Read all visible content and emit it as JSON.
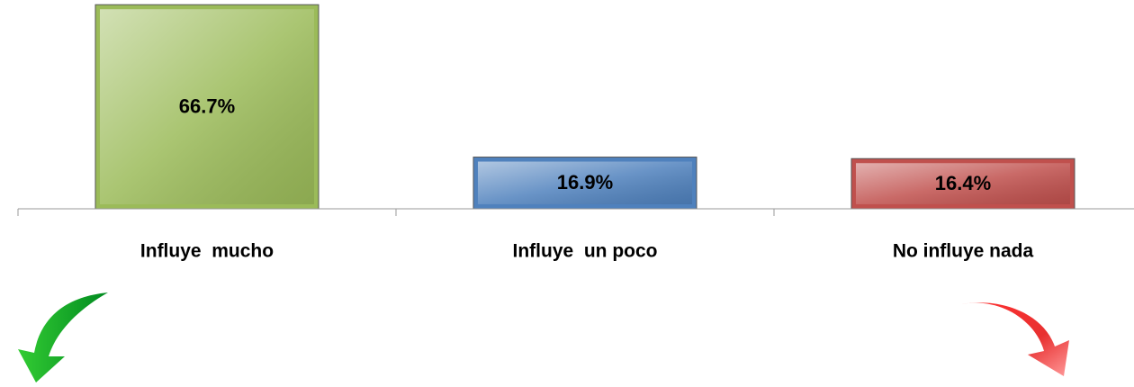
{
  "chart_data": {
    "type": "bar",
    "categories": [
      "Influye  mucho",
      "Influye  un poco",
      "No influye nada"
    ],
    "values": [
      66.7,
      16.9,
      16.4
    ],
    "value_labels": [
      "66.7%",
      "16.9%",
      "16.4%"
    ],
    "colors": [
      "#9bbb59",
      "#4f81bd",
      "#c0504d"
    ],
    "ylim": [
      0,
      70
    ]
  }
}
